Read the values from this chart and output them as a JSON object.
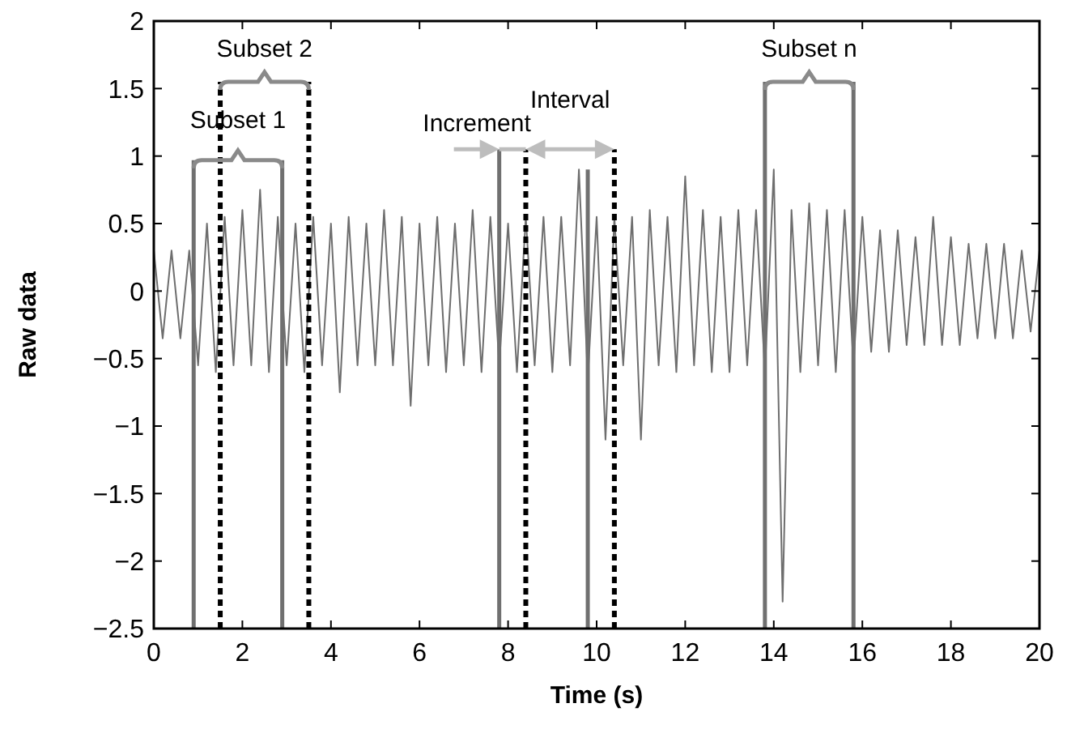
{
  "chart_data": {
    "type": "line",
    "xlabel": "Time (s)",
    "ylabel": "Raw data",
    "xlim": [
      0,
      20
    ],
    "xticks": [
      0,
      2,
      4,
      6,
      8,
      10,
      12,
      14,
      16,
      18,
      20
    ],
    "ylim": [
      -2.5,
      2
    ],
    "yticks": [
      {
        "value": -2.5,
        "label": "−2.5"
      },
      {
        "value": -2,
        "label": "−2"
      },
      {
        "value": -1.5,
        "label": "−1.5"
      },
      {
        "value": -1,
        "label": "−1"
      },
      {
        "value": -0.5,
        "label": "−0.5"
      },
      0,
      0.5,
      1,
      1.5,
      2
    ],
    "grid": false,
    "marker": "none",
    "line_style": "solid",
    "x": [
      0,
      0.2,
      0.4,
      0.6,
      0.8,
      1.0,
      1.2,
      1.4,
      1.6,
      1.8,
      2.0,
      2.2,
      2.4,
      2.6,
      2.8,
      3.0,
      3.2,
      3.4,
      3.6,
      3.8,
      4.0,
      4.2,
      4.4,
      4.6,
      4.8,
      5.0,
      5.2,
      5.4,
      5.6,
      5.8,
      6.0,
      6.2,
      6.4,
      6.6,
      6.8,
      7.0,
      7.2,
      7.4,
      7.6,
      7.8,
      8.0,
      8.2,
      8.4,
      8.6,
      8.8,
      9.0,
      9.2,
      9.4,
      9.6,
      9.8,
      10.0,
      10.2,
      10.4,
      10.6,
      10.8,
      11.0,
      11.2,
      11.4,
      11.6,
      11.8,
      12.0,
      12.2,
      12.4,
      12.6,
      12.8,
      13.0,
      13.2,
      13.4,
      13.6,
      13.8,
      14.0,
      14.2,
      14.4,
      14.6,
      14.8,
      15.0,
      15.2,
      15.4,
      15.6,
      15.8,
      16.0,
      16.2,
      16.4,
      16.6,
      16.8,
      17.0,
      17.2,
      17.4,
      17.6,
      17.8,
      18.0,
      18.2,
      18.4,
      18.6,
      18.8,
      19.0,
      19.2,
      19.4,
      19.6,
      19.8,
      20.0
    ],
    "series": [
      {
        "color": "#6e6e6e",
        "values": [
          0.3,
          -0.35,
          0.3,
          -0.35,
          0.3,
          -0.55,
          0.5,
          -0.6,
          0.55,
          -0.55,
          0.6,
          -0.55,
          0.75,
          -0.6,
          0.55,
          -0.55,
          0.5,
          -0.6,
          0.55,
          -0.55,
          0.5,
          -0.75,
          0.55,
          -0.55,
          0.5,
          -0.55,
          0.6,
          -0.55,
          0.55,
          -0.85,
          0.5,
          -0.55,
          0.55,
          -0.6,
          0.5,
          -0.55,
          0.6,
          -0.6,
          0.55,
          -0.55,
          0.5,
          -0.6,
          0.55,
          -0.55,
          0.55,
          -0.6,
          0.55,
          -0.55,
          0.9,
          -0.65,
          0.55,
          -1.1,
          0.55,
          -0.55,
          0.55,
          -1.1,
          0.6,
          -0.55,
          0.55,
          -0.6,
          0.85,
          -0.55,
          0.6,
          -0.6,
          0.55,
          -0.6,
          0.6,
          -0.55,
          0.6,
          -0.6,
          0.9,
          -2.3,
          0.6,
          -0.6,
          0.65,
          -0.55,
          0.6,
          -0.6,
          0.6,
          -0.55,
          0.55,
          -0.45,
          0.45,
          -0.45,
          0.45,
          -0.4,
          0.4,
          -0.4,
          0.55,
          -0.4,
          0.4,
          -0.4,
          0.35,
          -0.35,
          0.35,
          -0.35,
          0.35,
          -0.35,
          0.3,
          -0.3,
          0.3
        ]
      }
    ],
    "ref_lines": [
      {
        "axis": "x",
        "value": 0.9,
        "color": "#707070",
        "line_style": "solid"
      },
      {
        "axis": "x",
        "value": 1.5,
        "color": "#000000",
        "line_style": "dashed"
      },
      {
        "axis": "x",
        "value": 2.9,
        "color": "#707070",
        "line_style": "solid"
      },
      {
        "axis": "x",
        "value": 3.5,
        "color": "#000000",
        "line_style": "dashed"
      },
      {
        "axis": "x",
        "value": 7.8,
        "color": "#707070",
        "line_style": "solid"
      },
      {
        "axis": "x",
        "value": 8.4,
        "color": "#000000",
        "line_style": "dashed"
      },
      {
        "axis": "x",
        "value": 9.8,
        "color": "#707070",
        "line_style": "solid"
      },
      {
        "axis": "x",
        "value": 10.4,
        "color": "#000000",
        "line_style": "dashed"
      },
      {
        "axis": "x",
        "value": 13.8,
        "color": "#707070",
        "line_style": "solid"
      },
      {
        "axis": "x",
        "value": 15.8,
        "color": "#707070",
        "line_style": "solid"
      }
    ],
    "annotations": [
      "Subset 1",
      "Subset 2",
      "Increment",
      "Interval",
      "Subset n"
    ]
  }
}
